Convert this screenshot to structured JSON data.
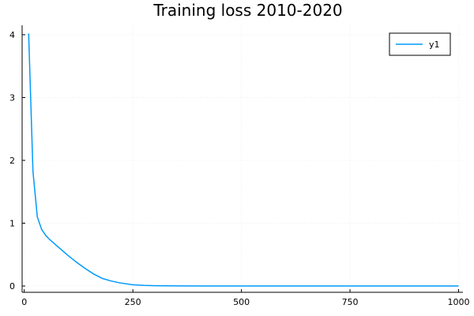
{
  "chart_data": {
    "type": "line",
    "title": "Training loss 2010-2020",
    "xlabel": "",
    "ylabel": "",
    "xlim": [
      -5,
      1010
    ],
    "ylim": [
      -0.1,
      4.15
    ],
    "xticks": [
      0,
      250,
      500,
      750,
      1000
    ],
    "yticks": [
      0,
      1,
      2,
      3,
      4
    ],
    "xtick_labels": [
      "0",
      "250",
      "500",
      "750",
      "1000"
    ],
    "ytick_labels": [
      "0",
      "1",
      "2",
      "3",
      "4"
    ],
    "grid": true,
    "legend": {
      "position": "top-right"
    },
    "series": [
      {
        "name": "y1",
        "color": "#009AFA",
        "x": [
          10,
          20,
          30,
          40,
          50,
          60,
          70,
          80,
          90,
          100,
          120,
          140,
          160,
          180,
          200,
          220,
          250,
          275,
          300,
          350,
          400,
          500,
          600,
          700,
          800,
          900,
          1000
        ],
        "y": [
          4.02,
          1.82,
          1.1,
          0.9,
          0.8,
          0.73,
          0.67,
          0.61,
          0.55,
          0.49,
          0.38,
          0.28,
          0.19,
          0.12,
          0.08,
          0.05,
          0.02,
          0.01,
          0.005,
          0.002,
          0.0,
          0.0,
          0.0,
          0.0,
          0.0,
          0.0,
          0.0
        ]
      }
    ]
  }
}
